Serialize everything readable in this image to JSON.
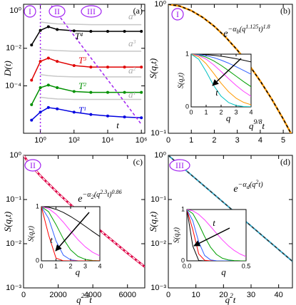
{
  "chart_data": [
    {
      "type": "line",
      "panel_label": "(a)",
      "ylabel": "D(t)",
      "xlabel": "t",
      "xscale": "log",
      "yscale": "log",
      "xlim": [
        0.1,
        1600000
      ],
      "ylim": [
        3e-07,
        2.2
      ],
      "xticks": [
        {
          "value": 1,
          "label": "10⁰"
        },
        {
          "value": 100,
          "label": "10²"
        },
        {
          "value": 10000,
          "label": "10⁴"
        },
        {
          "value": 1000000,
          "label": "10⁶"
        }
      ],
      "yticks": [
        {
          "value": 1,
          "label": "10⁰"
        },
        {
          "value": 0.01,
          "label": "10⁻²"
        },
        {
          "value": 0.0001,
          "label": "10⁻⁴"
        }
      ],
      "regimes": [
        "I",
        "II",
        "III"
      ],
      "regime_color": "#a020f0",
      "vlines": [
        1
      ],
      "x": [
        0.3,
        1,
        3,
        10,
        100,
        1000,
        10000,
        100000,
        1000000
      ],
      "series": [
        {
          "label": [
            "T",
            "4"
          ],
          "color": "#000000",
          "marker": "circle",
          "values": [
            0.015,
            0.09,
            0.14,
            0.1,
            0.085,
            0.08,
            0.08,
            0.08,
            0.08
          ]
        },
        {
          "label": [
            "T",
            "3"
          ],
          "color": "#e00000",
          "marker": "circle",
          "values": [
            0.0002,
            0.002,
            0.003,
            0.002,
            0.0012,
            0.001,
            0.001,
            0.001,
            0.001
          ]
        },
        {
          "label": [
            "T",
            "2"
          ],
          "color": "#009000",
          "marker": "circle",
          "values": [
            1e-05,
            8e-05,
            0.00011,
            8e-05,
            5e-05,
            4.5e-05,
            4.5e-05,
            4.5e-05,
            4.5e-05
          ]
        },
        {
          "label": [
            "T",
            "1"
          ],
          "color": "#0000e0",
          "marker": "circle",
          "values": [
            1.5e-06,
            4e-06,
            7e-06,
            6e-06,
            4e-06,
            3e-06,
            2.5e-06,
            2.2e-06,
            2e-06
          ]
        },
        {
          "label": [
            "a",
            "4"
          ],
          "color": "#c8c8c8",
          "values": [
            null,
            0.25,
            0.22,
            0.2,
            0.19,
            0.18,
            0.18,
            0.18,
            0.18
          ]
        },
        {
          "label": [
            "a",
            "3"
          ],
          "color": "#c8c8c8",
          "values": [
            null,
            0.009,
            0.008,
            0.0075,
            0.007,
            0.007,
            0.007,
            0.007,
            0.007
          ]
        },
        {
          "label": [
            "a",
            "2"
          ],
          "color": "#c8c8c8",
          "values": [
            null,
            0.0004,
            0.00035,
            0.00032,
            0.0003,
            0.0003,
            0.0003,
            0.0003,
            0.0003
          ]
        },
        {
          "label": [
            "a",
            "1"
          ],
          "color": "#c8c8c8",
          "values": [
            null,
            2.5e-05,
            2.2e-05,
            2e-05,
            1.9e-05,
            1.9e-05,
            1.9e-05,
            1.9e-05,
            1.9e-05
          ]
        },
        {
          "color": "#a020f0",
          "dash": true,
          "values": [
            null,
            null,
            3,
            0.72,
            0.0476,
            0.0031,
            0.00021,
            1.4e-05,
            9e-07
          ]
        }
      ]
    },
    {
      "type": "line",
      "panel_label": "(b)",
      "ylabel": "S(q,t)",
      "xlabel": [
        "q",
        "9/8",
        "t"
      ],
      "yscale": "log",
      "xlim": [
        0,
        5.4
      ],
      "ylim": [
        0.1,
        1
      ],
      "xticks": [
        0,
        1,
        2,
        3,
        4,
        5
      ],
      "yticks": [
        {
          "value": 1,
          "label": "10⁰"
        },
        {
          "value": 0.1,
          "label": "10⁻¹"
        }
      ],
      "regime": "I",
      "regime_color": "#a020f0",
      "formula": [
        "e",
        "−α",
        "b",
        "(q",
        "1.125",
        "t)",
        "1.8"
      ],
      "x": [
        0,
        0.5,
        1,
        1.5,
        2,
        2.5,
        3,
        3.5,
        4,
        4.5,
        5,
        5.4
      ],
      "series": [
        {
          "color": "#ff9900",
          "width": 2.5,
          "values": [
            1,
            0.968,
            0.893,
            0.791,
            0.675,
            0.555,
            0.442,
            0.341,
            0.254,
            0.184,
            0.129,
            0.095
          ]
        },
        {
          "color": "#000000",
          "dash": true,
          "values": [
            1,
            0.968,
            0.893,
            0.791,
            0.675,
            0.555,
            0.442,
            0.341,
            0.254,
            0.184,
            0.129,
            0.095
          ]
        }
      ],
      "inset": {
        "xlim": [
          0,
          4
        ],
        "ylim": [
          0,
          1
        ],
        "xticks": [
          0,
          1,
          2,
          3,
          4
        ],
        "yticks": [
          0,
          1
        ],
        "xlabel": "q",
        "ylabel": "S(q,t)",
        "arrow_label": "t",
        "x": [
          0,
          0.5,
          1,
          1.5,
          2,
          2.5,
          3,
          3.5,
          4
        ],
        "series": [
          {
            "color": "#000000",
            "values": [
              1,
              0.998,
              0.99,
              0.978,
              0.961,
              0.939,
              0.914,
              0.885,
              0.852
            ]
          },
          {
            "color": "#3060ff",
            "values": [
              1,
              0.993,
              0.97,
              0.935,
              0.887,
              0.829,
              0.763,
              0.692,
              0.619
            ]
          },
          {
            "color": "#00a000",
            "values": [
              1,
              0.985,
              0.942,
              0.874,
              0.787,
              0.687,
              0.583,
              0.479,
              0.383
            ]
          },
          {
            "color": "#ff40ff",
            "values": [
              1,
              0.975,
              0.905,
              0.799,
              0.67,
              0.535,
              0.407,
              0.294,
              0.202
            ]
          },
          {
            "color": "#ff9900",
            "values": [
              1,
              0.951,
              0.819,
              0.638,
              0.449,
              0.287,
              0.165,
              0.086,
              0.041
            ]
          },
          {
            "color": "#00c0c0",
            "values": [
              1,
              0.905,
              0.67,
              0.407,
              0.202,
              0.082,
              0.027,
              0.007,
              0.002
            ]
          }
        ]
      }
    },
    {
      "type": "line",
      "panel_label": "(c)",
      "ylabel": "S(q,t)",
      "xlabel": [
        "q",
        "2.3",
        "t"
      ],
      "yscale": "log",
      "xlim": [
        0,
        7000
      ],
      "ylim": [
        0.001,
        1
      ],
      "xticks": [
        0,
        2000,
        4000,
        6000
      ],
      "yticks": [
        {
          "value": 1,
          "label": "10⁰"
        },
        {
          "value": 0.1,
          "label": "10⁻¹"
        },
        {
          "value": 0.01,
          "label": "10⁻²"
        },
        {
          "value": 0.001,
          "label": "10⁻³"
        }
      ],
      "regime": "II",
      "regime_color": "#a020f0",
      "formula": [
        "e",
        "−α",
        "2",
        "(q",
        "2.3",
        "t)",
        "0.86"
      ],
      "x": [
        0,
        250,
        1000,
        2000,
        3000,
        4000,
        5000,
        6000,
        7000
      ],
      "series": [
        {
          "color": "#dd0044",
          "width": 3,
          "values": [
            1,
            0.718,
            0.336,
            0.138,
            0.0604,
            0.0274,
            0.0129,
            0.00613,
            0.003
          ]
        },
        {
          "color": "#ffffff",
          "dash": true,
          "values": [
            1,
            0.718,
            0.336,
            0.138,
            0.0604,
            0.0274,
            0.0129,
            0.00613,
            0.003
          ]
        }
      ],
      "inset": {
        "xlim": [
          0,
          4
        ],
        "ylim": [
          0,
          1
        ],
        "xticks": [
          0,
          1,
          2,
          3,
          4
        ],
        "yticks": [
          0,
          1
        ],
        "xlabel": "q",
        "ylabel": "S(q,t)",
        "arrow_label": "t",
        "x": [
          0,
          0.5,
          1,
          1.5,
          2,
          2.5,
          3,
          3.5,
          4
        ],
        "series": [
          {
            "color": "#000000",
            "values": [
              1,
              0.988,
              0.951,
              0.894,
              0.819,
              0.732,
              0.638,
              0.542,
              0.449
            ]
          },
          {
            "color": "#ff40ff",
            "values": [
              1,
              0.963,
              0.861,
              0.714,
              0.549,
              0.392,
              0.259,
              0.159,
              0.091
            ]
          },
          {
            "color": "#00a000",
            "values": [
              1,
              0.905,
              0.67,
              0.407,
              0.202,
              0.082,
              0.027,
              0.007,
              0.002
            ]
          },
          {
            "color": "#3060ff",
            "values": [
              1,
              0.779,
              0.368,
              0.105,
              0.018,
              0.002,
              0,
              0,
              0
            ]
          },
          {
            "color": "#ff0000",
            "values": [
              1,
              0.472,
              0.05,
              0.001,
              0,
              0,
              0,
              0,
              0
            ]
          }
        ]
      }
    },
    {
      "type": "line",
      "panel_label": "(d)",
      "ylabel": "S(q,t)",
      "xlabel": [
        "q",
        "2",
        "t"
      ],
      "yscale": "log",
      "xlim": [
        0,
        45
      ],
      "ylim": [
        0.001,
        1
      ],
      "xticks": [
        0,
        10,
        20,
        30,
        40
      ],
      "yticks": [
        {
          "value": 1,
          "label": "10⁰"
        },
        {
          "value": 0.1,
          "label": "10⁻¹"
        },
        {
          "value": 0.01,
          "label": "10⁻²"
        },
        {
          "value": 0.001,
          "label": "10⁻³"
        }
      ],
      "regime": "III",
      "regime_color": "#a020f0",
      "formula": [
        "e",
        "−α",
        "d",
        "(q",
        "2",
        "t)"
      ],
      "x": [
        0,
        5,
        10,
        15,
        20,
        25,
        30,
        35,
        40,
        45
      ],
      "series": [
        {
          "color": "#33aacc",
          "width": 2,
          "values": [
            1,
            0.541,
            0.293,
            0.159,
            0.0859,
            0.0465,
            0.0252,
            0.0136,
            0.00737,
            0.00399
          ]
        },
        {
          "color": "#333333",
          "dash": true,
          "values": [
            1,
            0.541,
            0.293,
            0.159,
            0.0859,
            0.0465,
            0.0252,
            0.0136,
            0.00737,
            0.00399
          ]
        }
      ],
      "inset": {
        "xlim": [
          0,
          0.5
        ],
        "ylim": [
          0,
          1
        ],
        "xticks": [
          {
            "value": 0,
            "label": "0.0"
          },
          {
            "value": 0.5,
            "label": "0.5"
          }
        ],
        "yticks": [
          0,
          1
        ],
        "xlabel": "q",
        "ylabel": "S(q,t)",
        "arrow_label": "t",
        "x": [
          0,
          0.05,
          0.1,
          0.15,
          0.2,
          0.25,
          0.3,
          0.35,
          0.4,
          0.45,
          0.5
        ],
        "series": [
          {
            "color": "#000000",
            "values": [
              1,
              0.287,
              0.0067,
              0,
              0,
              0,
              0,
              0,
              0,
              0,
              0
            ]
          },
          {
            "color": "#ff0000",
            "values": [
              1,
              0.607,
              0.135,
              0.011,
              0,
              0,
              0,
              0,
              0,
              0,
              0
            ]
          },
          {
            "color": "#3060ff",
            "values": [
              1,
              0.779,
              0.368,
              0.105,
              0.018,
              0.002,
              0,
              0,
              0,
              0,
              0
            ]
          },
          {
            "color": "#00a000",
            "values": [
              1,
              0.92,
              0.717,
              0.472,
              0.264,
              0.125,
              0.05,
              0.017,
              0.005,
              0.001,
              0
            ]
          },
          {
            "color": "#ff40ff",
            "values": [
              1,
              0.975,
              0.905,
              0.799,
              0.67,
              0.535,
              0.407,
              0.294,
              0.202,
              0.132,
              0.082
            ]
          }
        ]
      }
    }
  ]
}
